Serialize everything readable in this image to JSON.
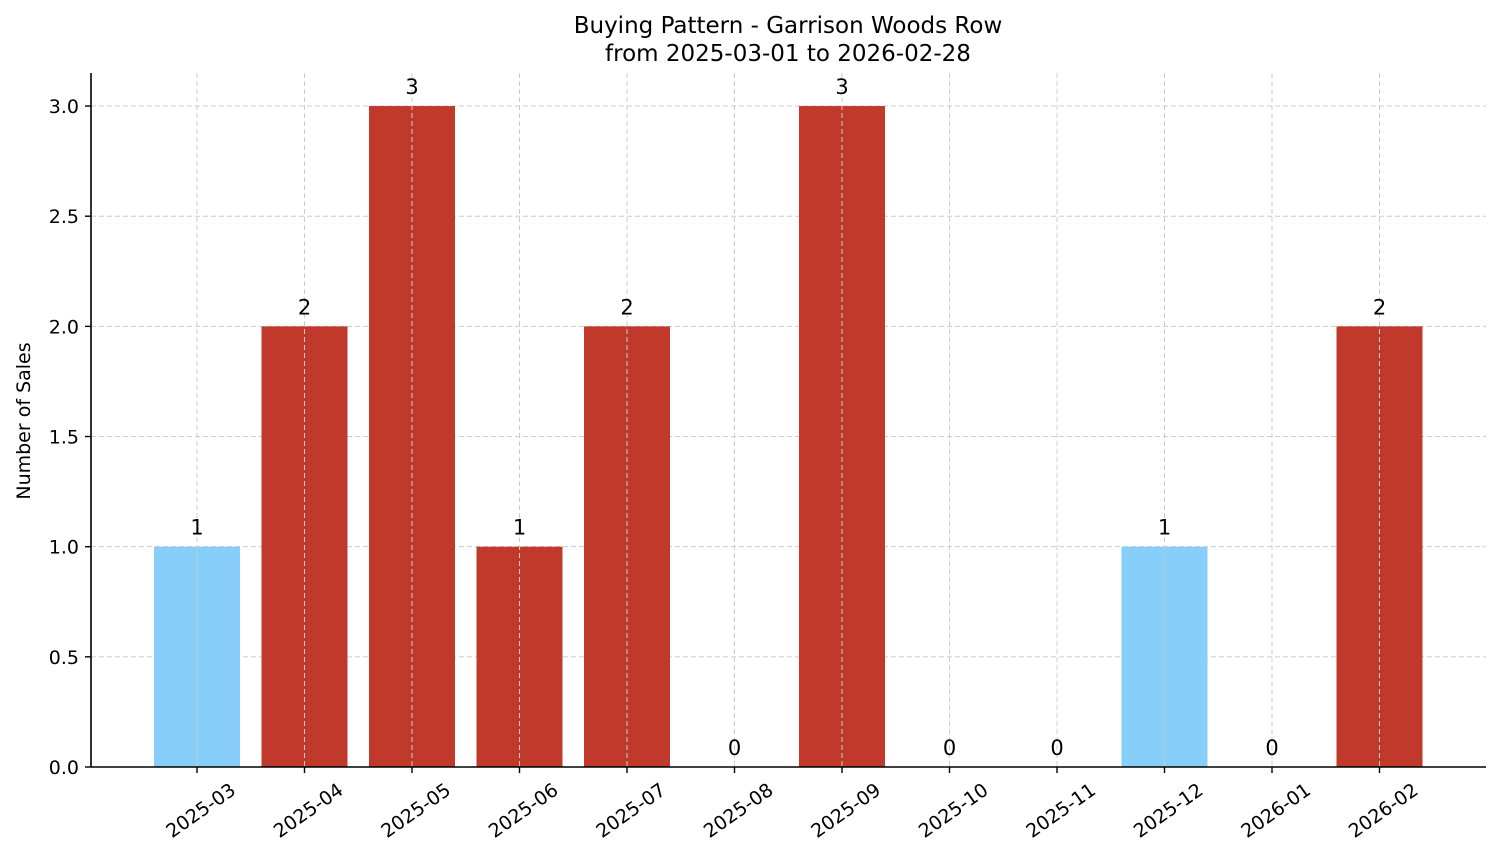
{
  "chart_data": {
    "type": "bar",
    "title": "Buying Pattern - Garrison Woods Row",
    "subtitle": "from 2025-03-01 to 2026-02-28",
    "xlabel": "",
    "ylabel": "Number of Sales",
    "categories": [
      "2025-03",
      "2025-04",
      "2025-05",
      "2025-06",
      "2025-07",
      "2025-08",
      "2025-09",
      "2025-10",
      "2025-11",
      "2025-12",
      "2026-01",
      "2026-02"
    ],
    "values": [
      1,
      2,
      3,
      1,
      2,
      0,
      3,
      0,
      0,
      1,
      0,
      2
    ],
    "bar_colors": [
      "#87CEFA",
      "#C0392B",
      "#C0392B",
      "#C0392B",
      "#C0392B",
      "#C0392B",
      "#C0392B",
      "#C0392B",
      "#C0392B",
      "#87CEFA",
      "#C0392B",
      "#C0392B"
    ],
    "data_labels": [
      "1",
      "2",
      "3",
      "1",
      "2",
      "0",
      "3",
      "0",
      "0",
      "1",
      "0",
      "2"
    ],
    "yticks": [
      0.0,
      0.5,
      1.0,
      1.5,
      2.0,
      2.5,
      3.0
    ],
    "ytick_labels": [
      "0.0",
      "0.5",
      "1.0",
      "1.5",
      "2.0",
      "2.5",
      "3.0"
    ],
    "ylim": [
      0,
      3.15
    ],
    "grid": true,
    "legend": "none"
  }
}
